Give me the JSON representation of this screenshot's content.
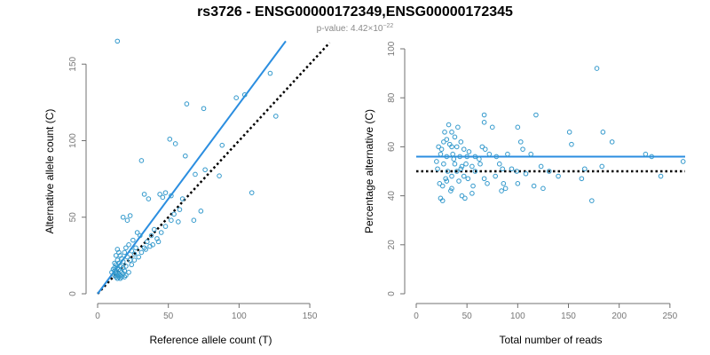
{
  "header": {
    "title": "rs3726 - ENSG00000172349,ENSG00000172345",
    "pvalue_prefix": "p-value: 4.42×10",
    "pvalue_exponent": "−22"
  },
  "colors": {
    "points": "#3399cc",
    "fit": "#2b8ee0",
    "expected": "#000000",
    "axis": "#707070"
  },
  "chart_data": [
    {
      "type": "scatter",
      "title": "",
      "xlabel": "Reference allele count (T)",
      "ylabel": "Alternative allele count (C)",
      "xlim": [
        0,
        160
      ],
      "ylim": [
        0,
        160
      ],
      "xticks": [
        0,
        50,
        100,
        150
      ],
      "yticks": [
        0,
        50,
        100,
        150
      ],
      "points": [
        [
          14,
          165
        ],
        [
          122,
          144
        ],
        [
          104,
          130
        ],
        [
          98,
          128
        ],
        [
          63,
          124
        ],
        [
          75,
          121
        ],
        [
          126,
          116
        ],
        [
          51,
          101
        ],
        [
          55,
          98
        ],
        [
          62,
          90
        ],
        [
          31,
          87
        ],
        [
          88,
          97
        ],
        [
          76,
          81
        ],
        [
          69,
          78
        ],
        [
          86,
          77
        ],
        [
          109,
          66
        ],
        [
          48,
          66
        ],
        [
          44,
          65
        ],
        [
          52,
          64
        ],
        [
          33,
          65
        ],
        [
          46,
          63
        ],
        [
          36,
          62
        ],
        [
          60,
          62
        ],
        [
          58,
          55
        ],
        [
          54,
          52
        ],
        [
          73,
          54
        ],
        [
          23,
          51
        ],
        [
          18,
          50
        ],
        [
          21,
          48
        ],
        [
          52,
          48
        ],
        [
          57,
          47
        ],
        [
          68,
          48
        ],
        [
          28,
          40
        ],
        [
          30,
          38
        ],
        [
          38,
          38
        ],
        [
          42,
          36
        ],
        [
          35,
          34
        ],
        [
          37,
          31
        ],
        [
          33,
          30
        ],
        [
          25,
          35
        ],
        [
          22,
          32
        ],
        [
          27,
          30
        ],
        [
          20,
          30
        ],
        [
          24,
          28
        ],
        [
          19,
          27
        ],
        [
          26,
          26
        ],
        [
          16,
          25
        ],
        [
          21,
          24
        ],
        [
          17,
          23
        ],
        [
          23,
          22
        ],
        [
          14,
          22
        ],
        [
          18,
          21
        ],
        [
          12,
          20
        ],
        [
          15,
          20
        ],
        [
          13,
          19
        ],
        [
          16,
          18
        ],
        [
          12,
          17
        ],
        [
          14,
          17
        ],
        [
          18,
          17
        ],
        [
          20,
          18
        ],
        [
          15,
          16
        ],
        [
          12,
          15
        ],
        [
          13,
          14
        ],
        [
          16,
          15
        ],
        [
          19,
          15
        ],
        [
          17,
          14
        ],
        [
          13,
          13
        ],
        [
          15,
          13
        ],
        [
          18,
          13
        ],
        [
          22,
          14
        ],
        [
          14,
          12
        ],
        [
          16,
          12
        ],
        [
          12,
          12
        ],
        [
          20,
          12
        ],
        [
          17,
          11
        ],
        [
          13,
          11
        ],
        [
          15,
          11
        ],
        [
          19,
          11
        ],
        [
          14,
          10
        ],
        [
          16,
          10
        ],
        [
          24,
          19
        ],
        [
          26,
          22
        ],
        [
          29,
          24
        ],
        [
          31,
          27
        ],
        [
          34,
          29
        ],
        [
          39,
          32
        ],
        [
          43,
          34
        ],
        [
          40,
          42
        ],
        [
          45,
          40
        ],
        [
          48,
          44
        ],
        [
          13,
          25
        ],
        [
          15,
          27
        ],
        [
          14,
          29
        ],
        [
          11,
          16
        ],
        [
          10,
          14
        ]
      ],
      "fit_line": {
        "x": [
          0,
          133
        ],
        "y": [
          0,
          165
        ]
      },
      "expected_line": {
        "x": [
          0,
          164
        ],
        "y": [
          0,
          164
        ]
      },
      "grid": false,
      "legend": "none"
    },
    {
      "type": "scatter",
      "title": "",
      "xlabel": "Total number of reads",
      "ylabel": "Percentage alternative (C)",
      "xlim": [
        0,
        265
      ],
      "ylim": [
        0,
        100
      ],
      "xticks": [
        0,
        50,
        100,
        150,
        200,
        250
      ],
      "yticks": [
        0,
        20,
        40,
        60,
        80,
        100
      ],
      "points": [
        [
          178,
          92
        ],
        [
          67,
          73
        ],
        [
          118,
          73
        ],
        [
          32,
          69
        ],
        [
          41,
          68
        ],
        [
          67,
          70
        ],
        [
          75,
          68
        ],
        [
          35,
          66
        ],
        [
          28,
          66
        ],
        [
          38,
          64
        ],
        [
          151,
          66
        ],
        [
          184,
          66
        ],
        [
          100,
          68
        ],
        [
          30,
          63
        ],
        [
          27,
          62
        ],
        [
          33,
          61
        ],
        [
          44,
          62
        ],
        [
          22,
          60
        ],
        [
          25,
          59
        ],
        [
          35,
          60
        ],
        [
          40,
          60
        ],
        [
          52,
          58
        ],
        [
          47,
          59
        ],
        [
          68,
          59
        ],
        [
          105,
          59
        ],
        [
          103,
          62
        ],
        [
          153,
          61
        ],
        [
          193,
          62
        ],
        [
          24,
          57
        ],
        [
          30,
          56
        ],
        [
          36,
          57
        ],
        [
          43,
          56
        ],
        [
          50,
          56
        ],
        [
          58,
          56
        ],
        [
          62,
          55
        ],
        [
          72,
          57
        ],
        [
          79,
          56
        ],
        [
          90,
          57
        ],
        [
          113,
          57
        ],
        [
          226,
          57
        ],
        [
          232,
          56
        ],
        [
          263,
          54
        ],
        [
          20,
          54
        ],
        [
          27,
          53
        ],
        [
          38,
          53
        ],
        [
          45,
          52
        ],
        [
          49,
          53
        ],
        [
          55,
          52
        ],
        [
          63,
          53
        ],
        [
          82,
          53
        ],
        [
          94,
          51
        ],
        [
          123,
          52
        ],
        [
          166,
          51
        ],
        [
          183,
          52
        ],
        [
          21,
          51
        ],
        [
          31,
          50
        ],
        [
          40,
          50
        ],
        [
          58,
          50
        ],
        [
          85,
          51
        ],
        [
          99,
          50
        ],
        [
          131,
          50
        ],
        [
          35,
          48
        ],
        [
          47,
          48
        ],
        [
          67,
          47
        ],
        [
          78,
          48
        ],
        [
          108,
          49
        ],
        [
          140,
          48
        ],
        [
          163,
          47
        ],
        [
          241,
          48
        ],
        [
          23,
          45
        ],
        [
          30,
          46
        ],
        [
          42,
          46
        ],
        [
          51,
          47
        ],
        [
          70,
          45
        ],
        [
          86,
          45
        ],
        [
          100,
          45
        ],
        [
          116,
          44
        ],
        [
          26,
          44
        ],
        [
          35,
          43
        ],
        [
          56,
          44
        ],
        [
          84,
          42
        ],
        [
          88,
          43
        ],
        [
          125,
          43
        ],
        [
          34,
          42
        ],
        [
          45,
          40
        ],
        [
          55,
          41
        ],
        [
          24,
          39
        ],
        [
          26,
          38
        ],
        [
          48,
          39
        ],
        [
          173,
          38
        ],
        [
          65,
          60
        ],
        [
          29,
          47
        ],
        [
          37,
          55
        ],
        [
          44,
          51
        ]
      ],
      "fit_line": {
        "x": [
          0,
          265
        ],
        "y": [
          56,
          56
        ]
      },
      "expected_line": {
        "x": [
          0,
          265
        ],
        "y": [
          50,
          50
        ]
      },
      "grid": false,
      "legend": "none"
    }
  ]
}
